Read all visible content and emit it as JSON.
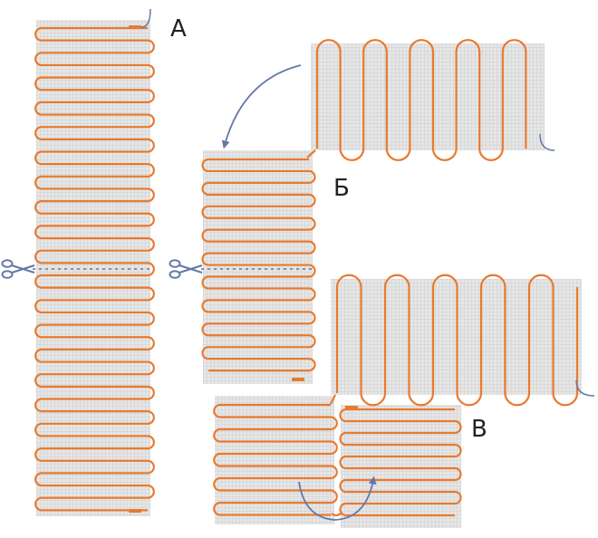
{
  "labels": {
    "a": "А",
    "b": "Б",
    "v": "В"
  },
  "colors": {
    "mesh_fill": "#e6e6e6",
    "mesh_grid": "#c8c8c8",
    "heating_cable": "#e87a2e",
    "arrow": "#6478a8",
    "cut_line": "#8a8fa8",
    "label_text": "#222222"
  },
  "icons": {
    "scissors": "scissors-icon",
    "bend_arrow": "curved-arrow-icon"
  }
}
